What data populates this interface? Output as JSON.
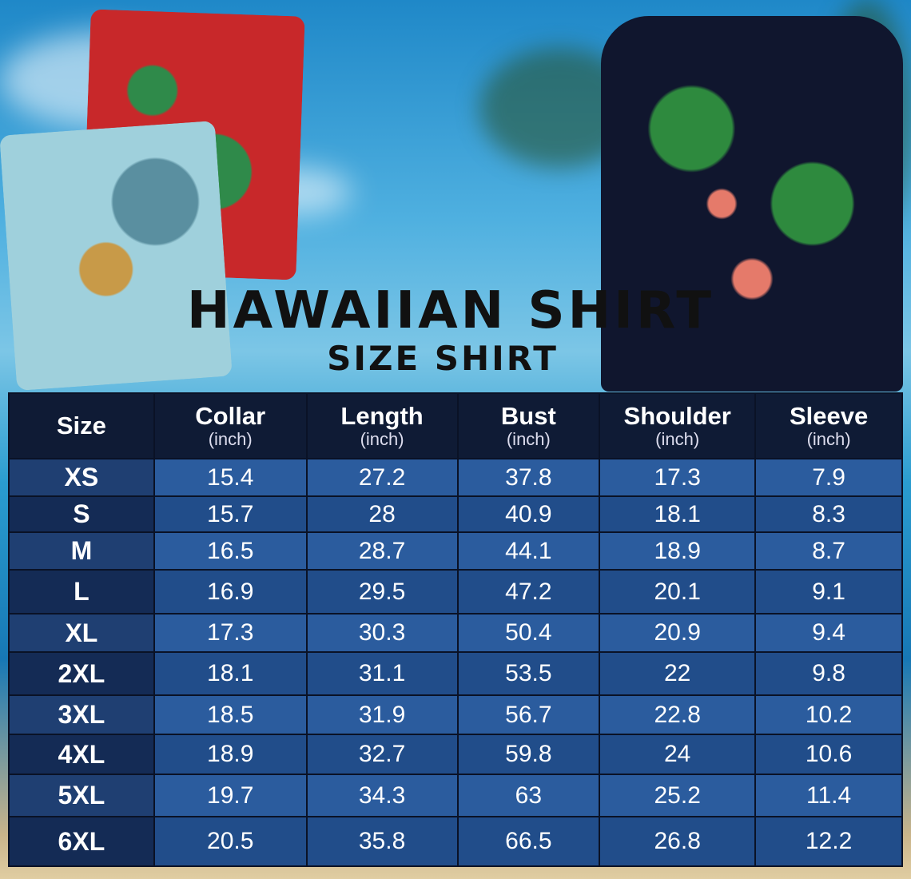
{
  "title": "HAWAIIAN SHIRT",
  "subtitle": "SIZE SHIRT",
  "colors": {
    "header": "#0f1b35",
    "row_light": "#2b5c9e",
    "row_dark": "#214d8a",
    "size_col": "#1c3a6b"
  },
  "images": [
    "folded-red-hawaiian-shirt",
    "folded-light-blue-parrot-shirt",
    "model-wearing-flamingo-shirt"
  ],
  "table": {
    "headers": [
      {
        "label": "Size",
        "unit": ""
      },
      {
        "label": "Collar",
        "unit": "(inch)"
      },
      {
        "label": "Length",
        "unit": "(inch)"
      },
      {
        "label": "Bust",
        "unit": "(inch)"
      },
      {
        "label": "Shoulder",
        "unit": "(inch)"
      },
      {
        "label": "Sleeve",
        "unit": "(inch)"
      }
    ],
    "rows": [
      [
        "XS",
        "15.4",
        "27.2",
        "37.8",
        "17.3",
        "7.9"
      ],
      [
        "S",
        "15.7",
        "28",
        "40.9",
        "18.1",
        "8.3"
      ],
      [
        "M",
        "16.5",
        "28.7",
        "44.1",
        "18.9",
        "8.7"
      ],
      [
        "L",
        "16.9",
        "29.5",
        "47.2",
        "20.1",
        "9.1"
      ],
      [
        "XL",
        "17.3",
        "30.3",
        "50.4",
        "20.9",
        "9.4"
      ],
      [
        "2XL",
        "18.1",
        "31.1",
        "53.5",
        "22",
        "9.8"
      ],
      [
        "3XL",
        "18.5",
        "31.9",
        "56.7",
        "22.8",
        "10.2"
      ],
      [
        "4XL",
        "18.9",
        "32.7",
        "59.8",
        "24",
        "10.6"
      ],
      [
        "5XL",
        "19.7",
        "34.3",
        "63",
        "25.2",
        "11.4"
      ],
      [
        "6XL",
        "20.5",
        "35.8",
        "66.5",
        "26.8",
        "12.2"
      ]
    ]
  }
}
